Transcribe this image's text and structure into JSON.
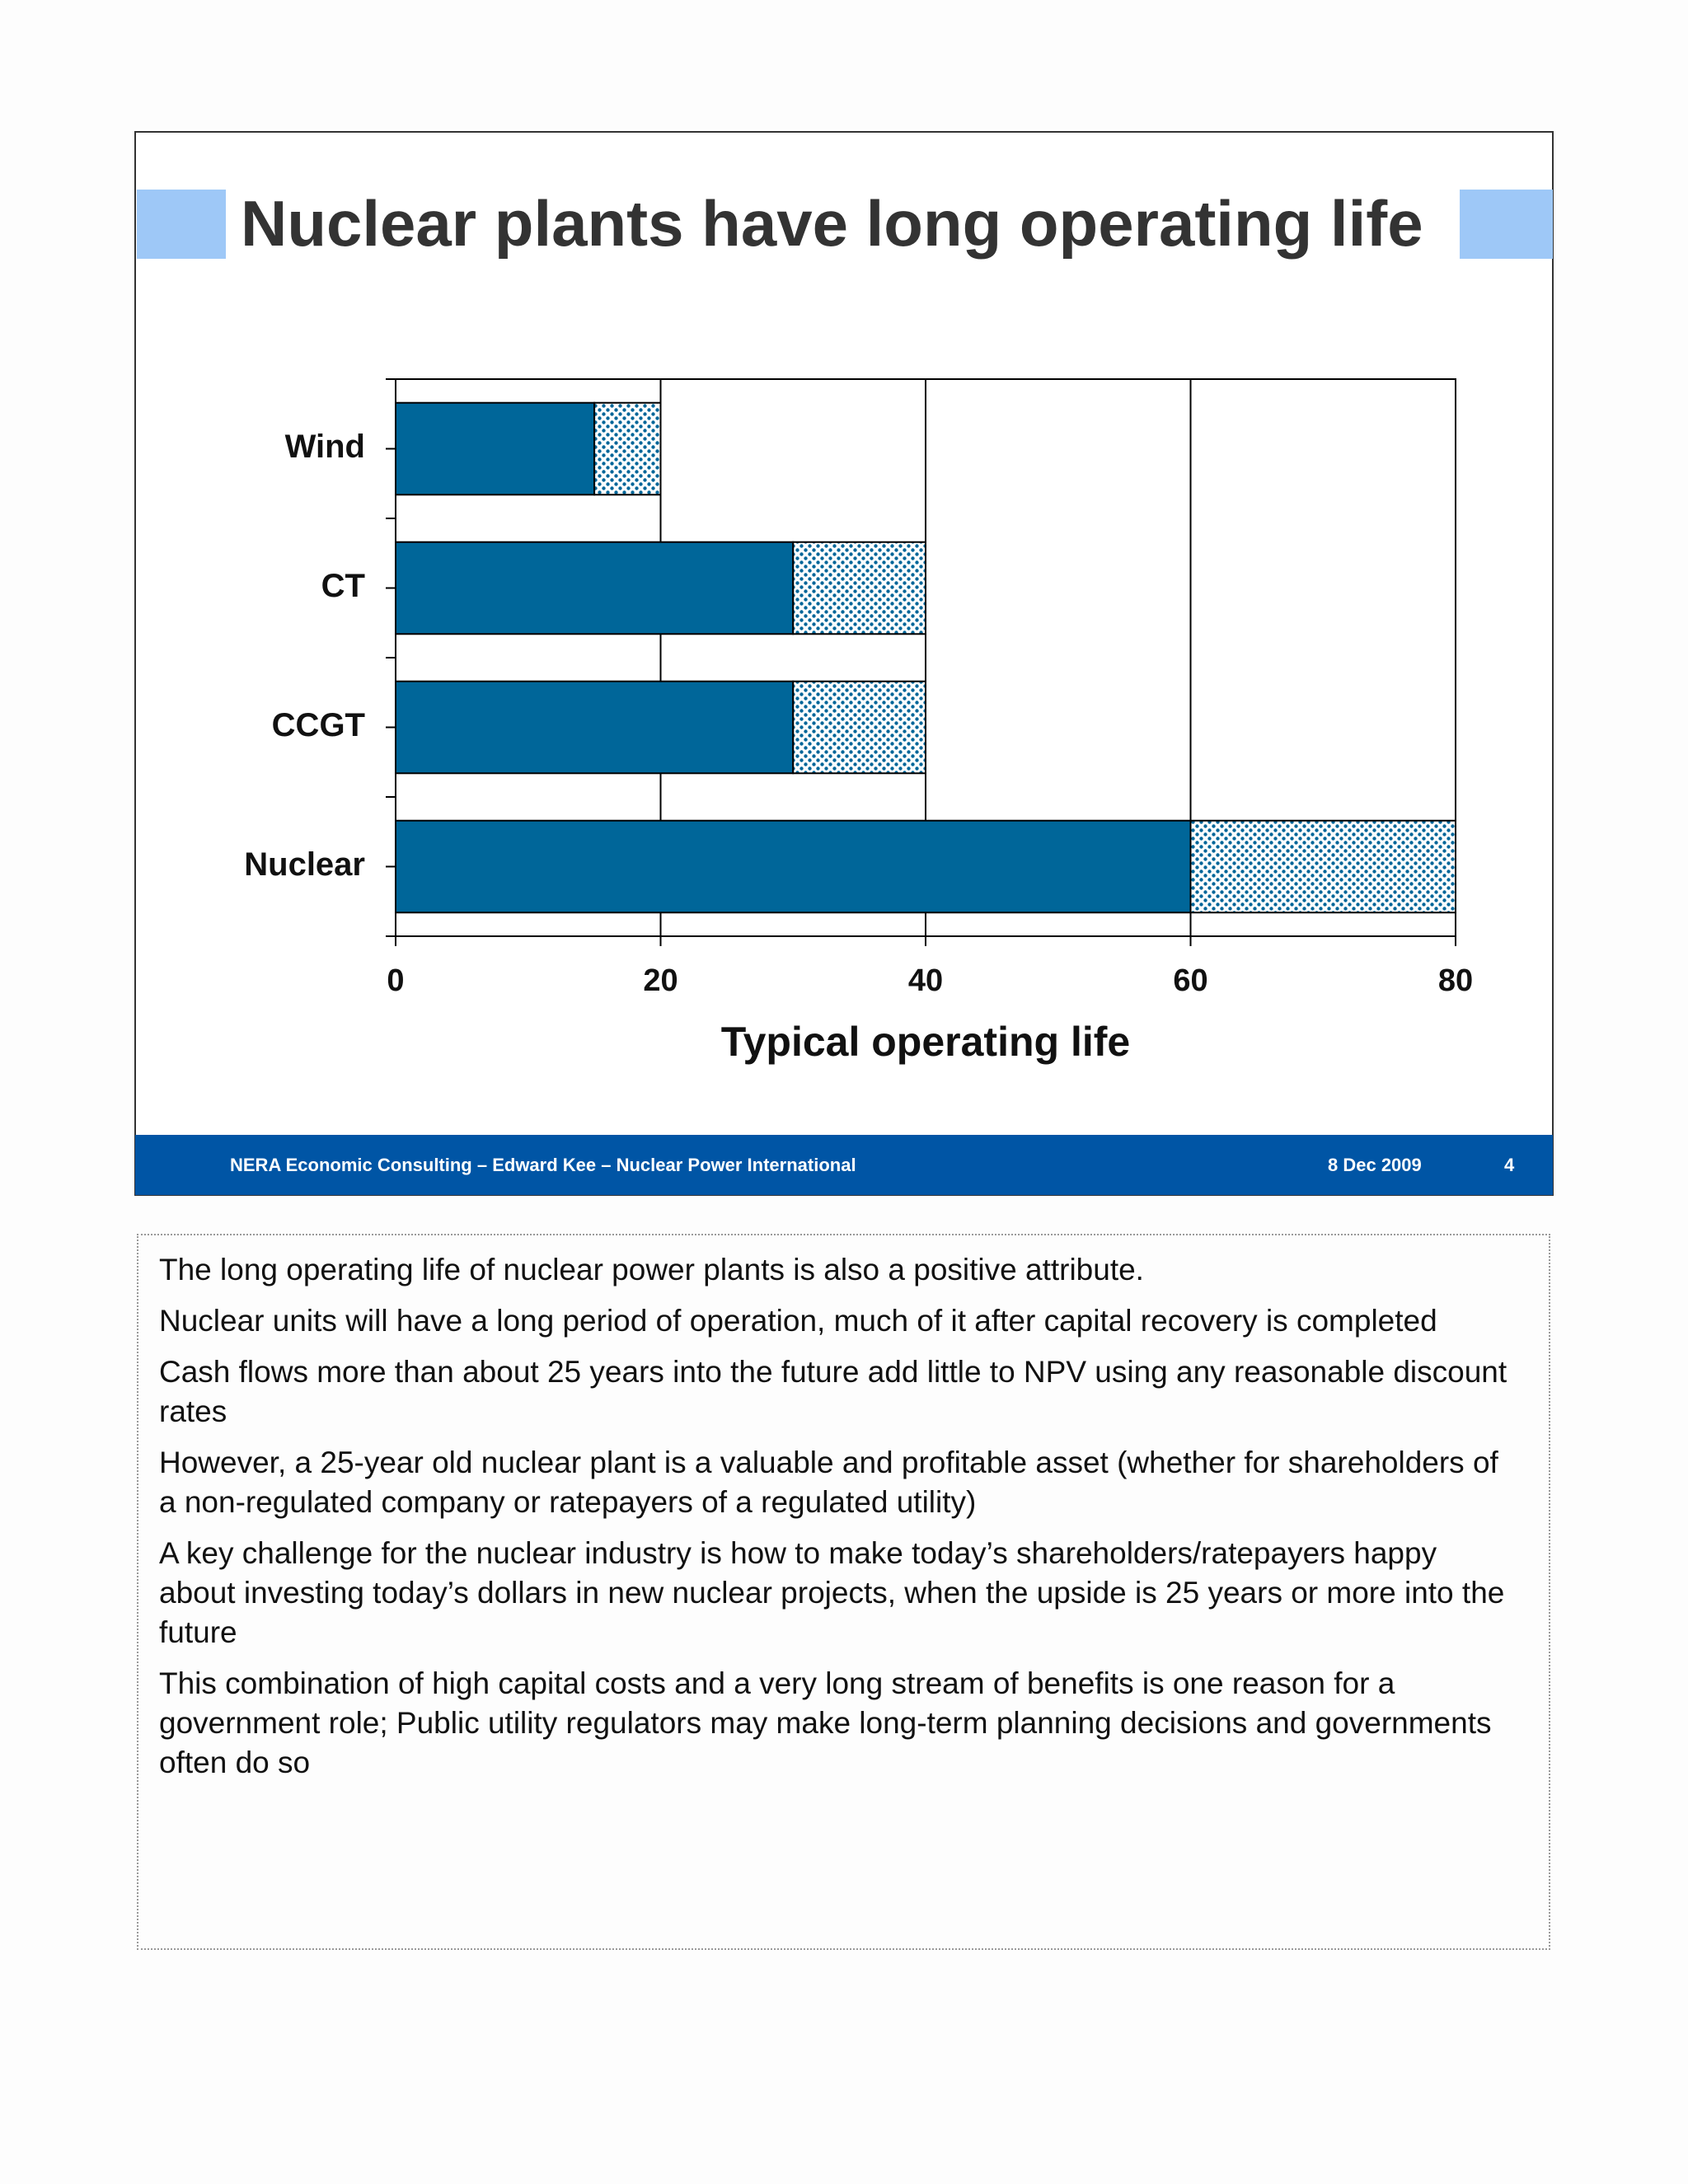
{
  "chart_data": {
    "type": "bar",
    "orientation": "horizontal",
    "stacked": true,
    "title": "Nuclear plants have long operating life",
    "categories": [
      "Wind",
      "CT",
      "CCGT",
      "Nuclear"
    ],
    "series": [
      {
        "color": "#006699",
        "values": [
          15,
          30,
          30,
          60
        ]
      },
      {
        "color": "#006699",
        "pattern": "dots",
        "values": [
          5,
          10,
          10,
          20
        ]
      }
    ],
    "xlabel": "Typical operating life",
    "xlim": [
      0,
      80
    ],
    "xticks": [
      0,
      20,
      40,
      60,
      80
    ],
    "grid": true
  },
  "footer": {
    "text": "NERA Economic Consulting – Edward Kee – Nuclear Power International",
    "date": "8 Dec 2009",
    "page": 4
  },
  "notes": [
    "The long operating life of nuclear power plants is also a positive attribute.",
    "Nuclear units will have a long period of operation, much of it after capital recovery is completed",
    "Cash flows more than about 25 years into the future add little to NPV using any reasonable discount rates",
    "However, a 25-year old nuclear plant is a valuable and profitable asset (whether for shareholders of a non-regulated company or ratepayers of a regulated utility)",
    "A key challenge for the nuclear industry is how to make today’s shareholders/ratepayers happy about investing today’s dollars in new nuclear projects, when the upside is 25 years or more into the future",
    "This combination of high capital costs and a very long stream of benefits is one reason for a government role; Public utility regulators may make long-term planning decisions and governments often do so"
  ]
}
